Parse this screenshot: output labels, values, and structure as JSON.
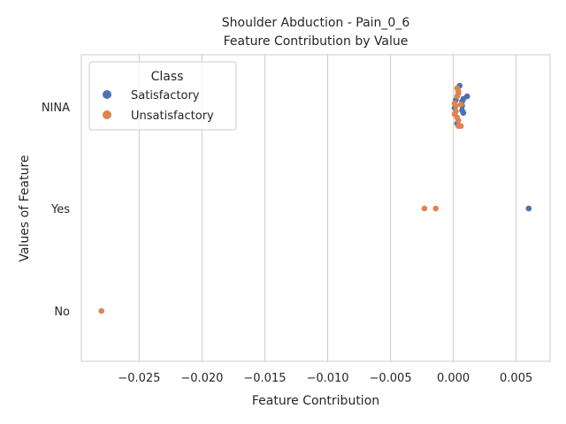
{
  "chart_data": {
    "type": "scatter",
    "subtype": "swarm",
    "title_line1": "Shoulder Abduction - Pain_0_6",
    "title_line2": "Feature Contribution by Value",
    "xlabel": "Feature Contribution",
    "ylabel": "Values of Feature",
    "categories": [
      "NINA",
      "Yes",
      "No"
    ],
    "xlim": [
      -0.0296,
      0.0077
    ],
    "xticks": [
      -0.025,
      -0.02,
      -0.015,
      -0.01,
      -0.005,
      0.0,
      0.005
    ],
    "xtick_labels": [
      "−0.025",
      "−0.020",
      "−0.015",
      "−0.010",
      "−0.005",
      "0.000",
      "0.005"
    ],
    "grid": "vertical",
    "legend": {
      "title": "Class",
      "placement": "top-left",
      "entries": [
        {
          "name": "Satisfactory",
          "color": "#4c72b0"
        },
        {
          "name": "Unsatisfactory",
          "color": "#dd8452"
        }
      ]
    },
    "series": [
      {
        "name": "Satisfactory",
        "color": "#4c72b0",
        "points": [
          {
            "x": 0.0005,
            "y": "NINA",
            "offset": -0.42
          },
          {
            "x": 0.0011,
            "y": "NINA",
            "offset": -0.21
          },
          {
            "x": 0.0008,
            "y": "NINA",
            "offset": -0.16
          },
          {
            "x": 0.0002,
            "y": "NINA",
            "offset": -0.14
          },
          {
            "x": 0.0007,
            "y": "NINA",
            "offset": -0.11
          },
          {
            "x": 0.0007,
            "y": "NINA",
            "offset": -0.02
          },
          {
            "x": 0.0001,
            "y": "NINA",
            "offset": 0.02
          },
          {
            "x": 0.0007,
            "y": "NINA",
            "offset": 0.07
          },
          {
            "x": 0.0008,
            "y": "NINA",
            "offset": 0.12
          },
          {
            "x": 0.0003,
            "y": "NINA",
            "offset": 0.33
          },
          {
            "x": 0.006,
            "y": "Yes",
            "offset": 0.0
          }
        ]
      },
      {
        "name": "Unsatisfactory",
        "color": "#dd8452",
        "points": [
          {
            "x": 0.0003,
            "y": "NINA",
            "offset": -0.37
          },
          {
            "x": 0.0004,
            "y": "NINA",
            "offset": -0.32
          },
          {
            "x": 0.0004,
            "y": "NINA",
            "offset": -0.27
          },
          {
            "x": 0.0003,
            "y": "NINA",
            "offset": -0.21
          },
          {
            "x": 0.0001,
            "y": "NINA",
            "offset": -0.07
          },
          {
            "x": 0.0006,
            "y": "NINA",
            "offset": -0.05
          },
          {
            "x": 0.0002,
            "y": "NINA",
            "offset": -0.02
          },
          {
            "x": 0.0002,
            "y": "NINA",
            "offset": 0.09
          },
          {
            "x": 0.0001,
            "y": "NINA",
            "offset": 0.14
          },
          {
            "x": 0.0003,
            "y": "NINA",
            "offset": 0.21
          },
          {
            "x": 0.0004,
            "y": "NINA",
            "offset": 0.27
          },
          {
            "x": 0.0004,
            "y": "NINA",
            "offset": 0.38
          },
          {
            "x": 0.0006,
            "y": "NINA",
            "offset": 0.38
          },
          {
            "x": -0.0023,
            "y": "Yes",
            "offset": 0.0
          },
          {
            "x": -0.0014,
            "y": "Yes",
            "offset": 0.0
          },
          {
            "x": -0.028,
            "y": "No",
            "offset": 0.0
          }
        ]
      }
    ]
  }
}
